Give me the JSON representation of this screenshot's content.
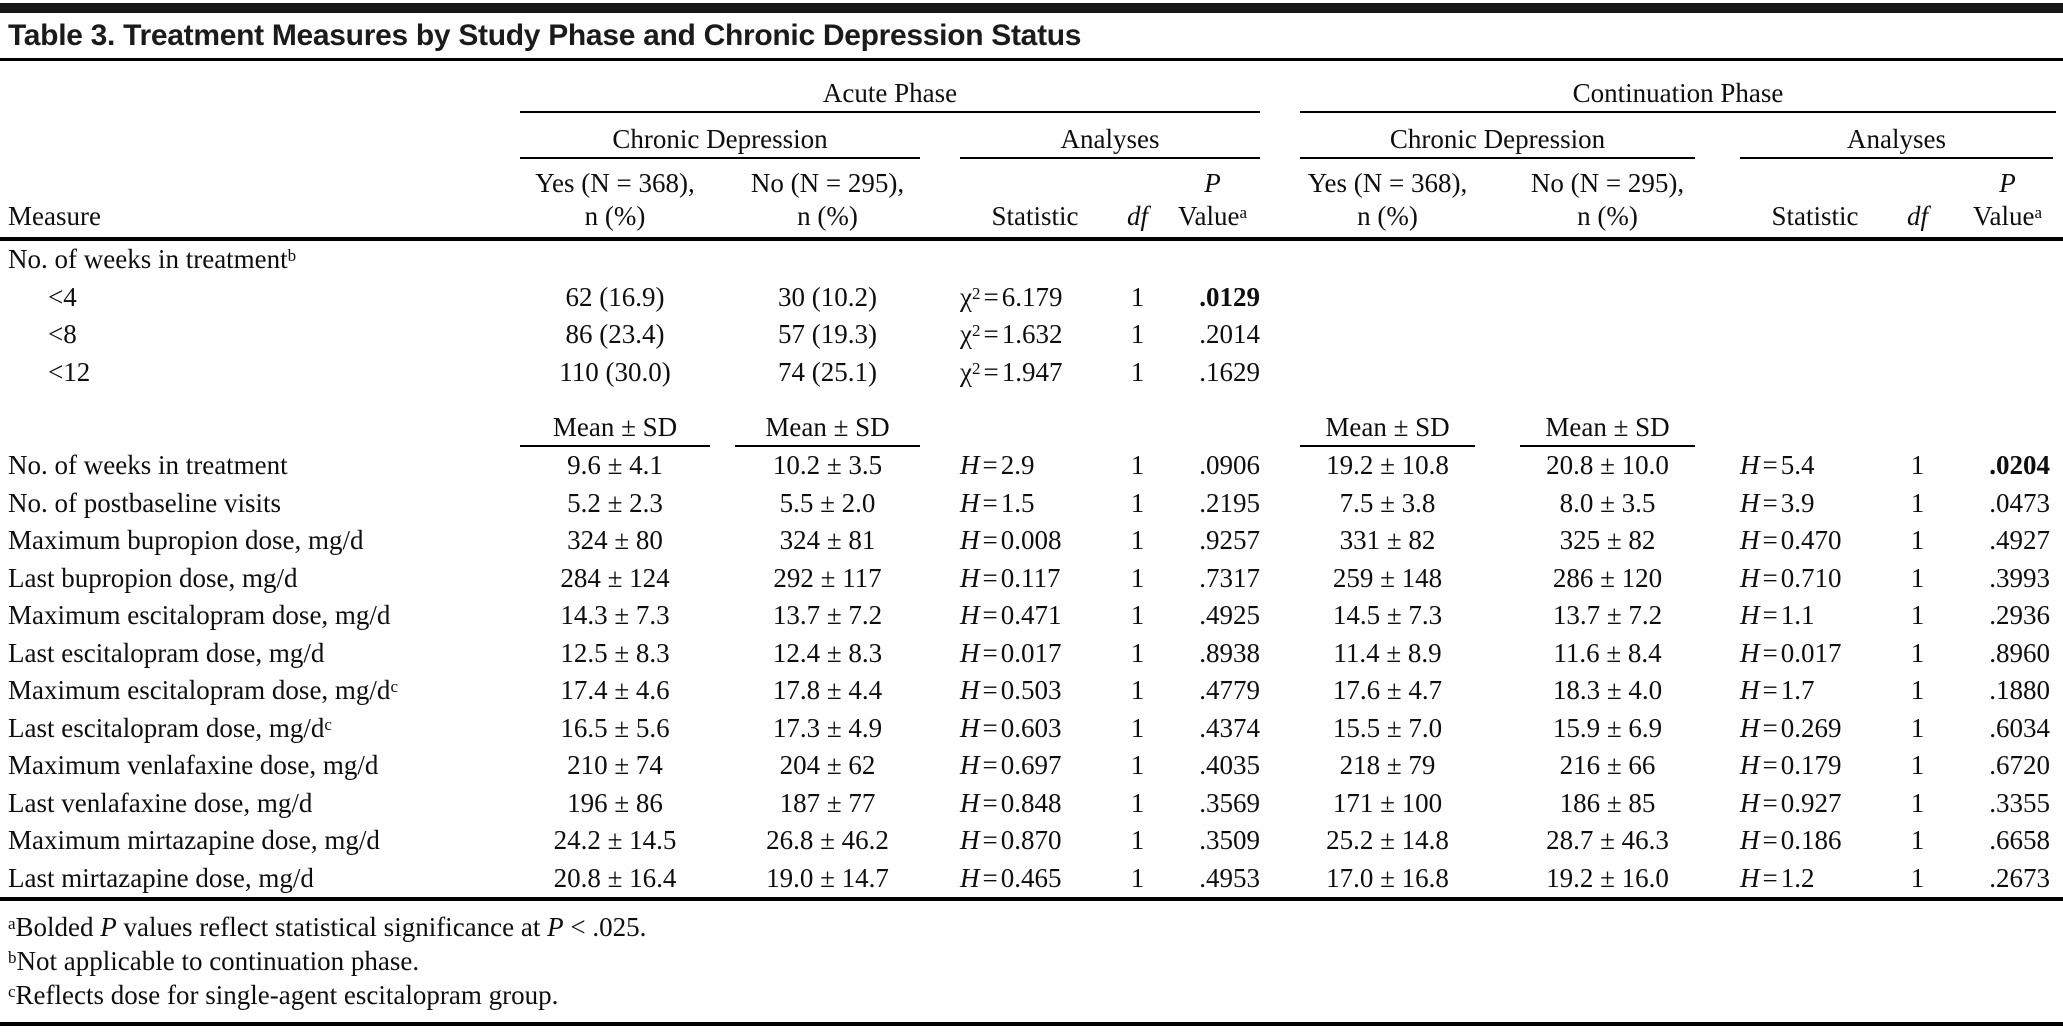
{
  "title": "Table 3. Treatment Measures by Study Phase and Chronic Depression Status",
  "header": {
    "measure_label": "Measure",
    "phases": [
      {
        "label": "Acute Phase"
      },
      {
        "label": "Continuation Phase"
      }
    ],
    "group_labels": {
      "chronic": "Chronic Depression",
      "analyses": "Analyses"
    },
    "col_labels": {
      "yes_line1": "Yes (N = 368),",
      "no_line1": "No (N = 295),",
      "n_pct": "n (%)",
      "statistic": "Statistic",
      "df": "df",
      "p_line1": "P",
      "p_line2": "Value",
      "p_sup": "a"
    },
    "mean_sd": "Mean ± SD"
  },
  "weeks_section": {
    "label": "No. of weeks in treatment",
    "label_sup": "b",
    "rows": [
      {
        "label": "<4",
        "acute": {
          "yes": "62 (16.9)",
          "no": "30 (10.2)",
          "stat_var": "chi2",
          "stat_val": "6.179",
          "df": "1",
          "p": ".0129",
          "p_bold": true
        }
      },
      {
        "label": "<8",
        "acute": {
          "yes": "86 (23.4)",
          "no": "57 (19.3)",
          "stat_var": "chi2",
          "stat_val": "1.632",
          "df": "1",
          "p": ".2014",
          "p_bold": false
        }
      },
      {
        "label": "<12",
        "acute": {
          "yes": "110 (30.0)",
          "no": "74 (25.1)",
          "stat_var": "chi2",
          "stat_val": "1.947",
          "df": "1",
          "p": ".1629",
          "p_bold": false
        }
      }
    ]
  },
  "measure_rows": [
    {
      "label": "No. of weeks in treatment",
      "acute": {
        "yes": "9.6 ± 4.1",
        "no": "10.2 ± 3.5",
        "stat_var": "H",
        "stat_val": "2.9",
        "df": "1",
        "p": ".0906",
        "p_bold": false
      },
      "cont": {
        "yes": "19.2 ± 10.8",
        "no": "20.8 ± 10.0",
        "stat_var": "H",
        "stat_val": "5.4",
        "df": "1",
        "p": ".0204",
        "p_bold": true
      }
    },
    {
      "label": "No. of postbaseline visits",
      "acute": {
        "yes": "5.2 ± 2.3",
        "no": "5.5 ± 2.0",
        "stat_var": "H",
        "stat_val": "1.5",
        "df": "1",
        "p": ".2195",
        "p_bold": false
      },
      "cont": {
        "yes": "7.5 ± 3.8",
        "no": "8.0 ± 3.5",
        "stat_var": "H",
        "stat_val": "3.9",
        "df": "1",
        "p": ".0473",
        "p_bold": false
      }
    },
    {
      "label": "Maximum bupropion dose, mg/d",
      "acute": {
        "yes": "324 ± 80",
        "no": "324 ± 81",
        "stat_var": "H",
        "stat_val": "0.008",
        "df": "1",
        "p": ".9257",
        "p_bold": false
      },
      "cont": {
        "yes": "331 ± 82",
        "no": "325 ± 82",
        "stat_var": "H",
        "stat_val": "0.470",
        "df": "1",
        "p": ".4927",
        "p_bold": false
      }
    },
    {
      "label": "Last bupropion dose, mg/d",
      "acute": {
        "yes": "284 ± 124",
        "no": "292 ± 117",
        "stat_var": "H",
        "stat_val": "0.117",
        "df": "1",
        "p": ".7317",
        "p_bold": false
      },
      "cont": {
        "yes": "259 ± 148",
        "no": "286 ± 120",
        "stat_var": "H",
        "stat_val": "0.710",
        "df": "1",
        "p": ".3993",
        "p_bold": false
      }
    },
    {
      "label": "Maximum escitalopram dose, mg/d",
      "acute": {
        "yes": "14.3 ± 7.3",
        "no": "13.7 ± 7.2",
        "stat_var": "H",
        "stat_val": "0.471",
        "df": "1",
        "p": ".4925",
        "p_bold": false
      },
      "cont": {
        "yes": "14.5 ± 7.3",
        "no": "13.7 ± 7.2",
        "stat_var": "H",
        "stat_val": "1.1",
        "df": "1",
        "p": ".2936",
        "p_bold": false
      }
    },
    {
      "label": "Last escitalopram dose, mg/d",
      "acute": {
        "yes": "12.5 ± 8.3",
        "no": "12.4 ± 8.3",
        "stat_var": "H",
        "stat_val": "0.017",
        "df": "1",
        "p": ".8938",
        "p_bold": false
      },
      "cont": {
        "yes": "11.4 ± 8.9",
        "no": "11.6 ± 8.4",
        "stat_var": "H",
        "stat_val": "0.017",
        "df": "1",
        "p": ".8960",
        "p_bold": false
      }
    },
    {
      "label": "Maximum escitalopram dose, mg/d",
      "label_sup": "c",
      "acute": {
        "yes": "17.4 ± 4.6",
        "no": "17.8 ± 4.4",
        "stat_var": "H",
        "stat_val": "0.503",
        "df": "1",
        "p": ".4779",
        "p_bold": false
      },
      "cont": {
        "yes": "17.6 ± 4.7",
        "no": "18.3 ± 4.0",
        "stat_var": "H",
        "stat_val": "1.7",
        "df": "1",
        "p": ".1880",
        "p_bold": false
      }
    },
    {
      "label": "Last escitalopram dose, mg/d",
      "label_sup": "c",
      "acute": {
        "yes": "16.5 ± 5.6",
        "no": "17.3 ± 4.9",
        "stat_var": "H",
        "stat_val": "0.603",
        "df": "1",
        "p": ".4374",
        "p_bold": false
      },
      "cont": {
        "yes": "15.5 ± 7.0",
        "no": "15.9 ± 6.9",
        "stat_var": "H",
        "stat_val": "0.269",
        "df": "1",
        "p": ".6034",
        "p_bold": false
      }
    },
    {
      "label": "Maximum venlafaxine dose, mg/d",
      "acute": {
        "yes": "210 ± 74",
        "no": "204 ± 62",
        "stat_var": "H",
        "stat_val": "0.697",
        "df": "1",
        "p": ".4035",
        "p_bold": false
      },
      "cont": {
        "yes": "218 ± 79",
        "no": "216 ± 66",
        "stat_var": "H",
        "stat_val": "0.179",
        "df": "1",
        "p": ".6720",
        "p_bold": false
      }
    },
    {
      "label": "Last venlafaxine dose, mg/d",
      "acute": {
        "yes": "196 ± 86",
        "no": "187 ± 77",
        "stat_var": "H",
        "stat_val": "0.848",
        "df": "1",
        "p": ".3569",
        "p_bold": false
      },
      "cont": {
        "yes": "171 ± 100",
        "no": "186 ± 85",
        "stat_var": "H",
        "stat_val": "0.927",
        "df": "1",
        "p": ".3355",
        "p_bold": false
      }
    },
    {
      "label": "Maximum mirtazapine dose, mg/d",
      "acute": {
        "yes": "24.2 ± 14.5",
        "no": "26.8 ± 46.2",
        "stat_var": "H",
        "stat_val": "0.870",
        "df": "1",
        "p": ".3509",
        "p_bold": false
      },
      "cont": {
        "yes": "25.2 ± 14.8",
        "no": "28.7 ± 46.3",
        "stat_var": "H",
        "stat_val": "0.186",
        "df": "1",
        "p": ".6658",
        "p_bold": false
      }
    },
    {
      "label": "Last mirtazapine dose, mg/d",
      "acute": {
        "yes": "20.8 ± 16.4",
        "no": "19.0 ± 14.7",
        "stat_var": "H",
        "stat_val": "0.465",
        "df": "1",
        "p": ".4953",
        "p_bold": false
      },
      "cont": {
        "yes": "17.0 ± 16.8",
        "no": "19.2 ± 16.0",
        "stat_var": "H",
        "stat_val": "1.2",
        "df": "1",
        "p": ".2673",
        "p_bold": false
      }
    }
  ],
  "footnotes": [
    {
      "sup": "a",
      "segments": [
        {
          "t": "Bolded "
        },
        {
          "t": "P",
          "i": true
        },
        {
          "t": " values reflect statistical significance at "
        },
        {
          "t": "P",
          "i": true
        },
        {
          "t": " < .025."
        }
      ]
    },
    {
      "sup": "b",
      "segments": [
        {
          "t": "Not applicable to continuation phase."
        }
      ]
    },
    {
      "sup": "c",
      "segments": [
        {
          "t": "Reflects dose for single-agent escitalopram group."
        }
      ]
    }
  ]
}
